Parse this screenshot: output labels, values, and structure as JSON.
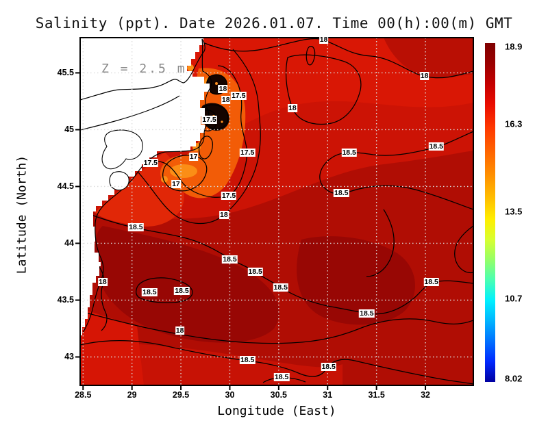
{
  "title": "Salinity (ppt). Date 2026.01.07. Time 00(h):00(m) GMT",
  "annotation": "Z = 2.5 m",
  "axes": {
    "x": {
      "label": "Longitude (East)",
      "ticks": [
        28.5,
        29,
        29.5,
        30,
        30.5,
        31,
        31.5,
        32
      ],
      "range": [
        28.47,
        32.49
      ]
    },
    "y": {
      "label": "Latitude (North)",
      "ticks": [
        43,
        43.5,
        44,
        44.5,
        45,
        45.5
      ],
      "range": [
        42.75,
        45.81
      ]
    }
  },
  "colorbar": {
    "min": 8.02,
    "max": 18.9,
    "tick_labels": [
      "18.9",
      "16.3",
      "13.5",
      "10.7",
      "8.02"
    ],
    "tick_values": [
      18.9,
      16.3,
      13.5,
      10.7,
      8.02
    ],
    "colormap": "jet"
  },
  "chart_data": {
    "type": "heatmap",
    "title": "Salinity (ppt). Date 2026.01.07. Time 00(h):00(m) GMT",
    "variable": "Salinity (ppt)",
    "depth_annotation": "Z = 2.5 m",
    "xlabel": "Longitude (East)",
    "ylabel": "Latitude (North)",
    "xlim": [
      28.47,
      32.49
    ],
    "ylim": [
      42.75,
      45.81
    ],
    "grid": true,
    "colormap": "jet",
    "color_range": [
      8.02,
      18.9
    ],
    "contour_levels": [
      17,
      17.5,
      18,
      18.5
    ],
    "region_description": "Western Black Sea salinity field; white land mass with Danube delta on the west, low-salinity orange/black plume at the delta mouths, salinity increasing offshore from 17 to above 18.5",
    "contour_labels": [
      {
        "value": "18",
        "lon": 29.93,
        "lat": 45.36
      },
      {
        "value": "18",
        "lon": 29.96,
        "lat": 45.26
      },
      {
        "value": "17.5",
        "lon": 30.09,
        "lat": 45.3
      },
      {
        "value": "17.5",
        "lon": 29.79,
        "lat": 45.09
      },
      {
        "value": "17.5",
        "lon": 30.18,
        "lat": 44.8
      },
      {
        "value": "17",
        "lon": 29.63,
        "lat": 44.76
      },
      {
        "value": "17.5",
        "lon": 29.19,
        "lat": 44.71
      },
      {
        "value": "17",
        "lon": 29.45,
        "lat": 44.52
      },
      {
        "value": "17.5",
        "lon": 29.99,
        "lat": 44.42
      },
      {
        "value": "18",
        "lon": 29.94,
        "lat": 44.25
      },
      {
        "value": "18",
        "lon": 30.96,
        "lat": 45.79
      },
      {
        "value": "18",
        "lon": 31.99,
        "lat": 45.47
      },
      {
        "value": "18",
        "lon": 30.64,
        "lat": 45.19
      },
      {
        "value": "18.5",
        "lon": 31.22,
        "lat": 44.8
      },
      {
        "value": "18.5",
        "lon": 32.11,
        "lat": 44.85
      },
      {
        "value": "18.5",
        "lon": 31.14,
        "lat": 44.44
      },
      {
        "value": "18.5",
        "lon": 29.04,
        "lat": 44.14
      },
      {
        "value": "18.5",
        "lon": 30.0,
        "lat": 43.86
      },
      {
        "value": "18.5",
        "lon": 30.26,
        "lat": 43.75
      },
      {
        "value": "18",
        "lon": 28.7,
        "lat": 43.66
      },
      {
        "value": "18.5",
        "lon": 29.18,
        "lat": 43.57
      },
      {
        "value": "18.5",
        "lon": 29.51,
        "lat": 43.58
      },
      {
        "value": "18",
        "lon": 29.49,
        "lat": 43.23
      },
      {
        "value": "18.5",
        "lon": 30.18,
        "lat": 42.97
      },
      {
        "value": "18.5",
        "lon": 30.52,
        "lat": 43.61
      },
      {
        "value": "18.5",
        "lon": 32.06,
        "lat": 43.66
      },
      {
        "value": "18.5",
        "lon": 31.4,
        "lat": 43.38
      },
      {
        "value": "18.5",
        "lon": 31.01,
        "lat": 42.91
      },
      {
        "value": "18.5",
        "lon": 30.53,
        "lat": 42.82
      }
    ]
  },
  "palette": {
    "sea_base": "#cc1305",
    "sea_north": "#d91705",
    "sea_dark": "#b00d04",
    "sea_darker": "#980704",
    "sea_ne_dark": "#b90f04",
    "coastal_bright": "#e12707",
    "plume_orange": "#f25c07",
    "plume_bright": "#fb8e16",
    "plume_black": "#140400",
    "land": "#ffffff",
    "grid_dots": "#dcdcdc"
  }
}
